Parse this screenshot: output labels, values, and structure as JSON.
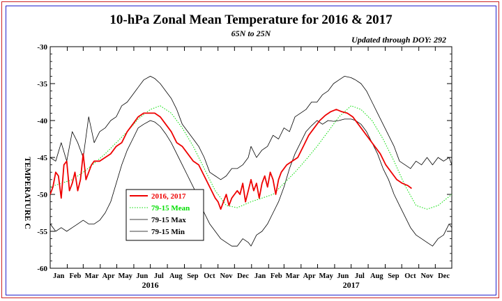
{
  "chart_data": {
    "type": "line",
    "title": "10-hPa Zonal Mean Temperature for 2016 & 2017",
    "subtitle": "65N to 25N",
    "update_note": "Updated through DOY: 292",
    "ylabel": "TEMPERATURE C",
    "ylim": [
      -60,
      -30
    ],
    "yticks": [
      -30,
      -35,
      -40,
      -45,
      -50,
      -55,
      -60
    ],
    "xlim": [
      0,
      730
    ],
    "month_labels": [
      "Jan",
      "Feb",
      "Mar",
      "Apr",
      "May",
      "Jun",
      "Jul",
      "Aug",
      "Sep",
      "Oct",
      "Nov",
      "Dec",
      "Jan",
      "Feb",
      "Mar",
      "Apr",
      "May",
      "Jun",
      "Jul",
      "Aug",
      "Sep",
      "Oct",
      "Nov",
      "Dec"
    ],
    "year_labels": [
      {
        "label": "2016",
        "day": 182
      },
      {
        "label": "2017",
        "day": 547
      }
    ],
    "grid": false,
    "legend_position": "lower-left",
    "series": [
      {
        "name": "2016, 2017",
        "color": "#ee0000",
        "style": "solid-thick",
        "x": [
          0,
          5,
          10,
          15,
          20,
          25,
          30,
          35,
          40,
          45,
          50,
          55,
          60,
          65,
          70,
          75,
          80,
          90,
          100,
          110,
          120,
          130,
          140,
          150,
          160,
          170,
          180,
          190,
          200,
          210,
          220,
          230,
          240,
          250,
          260,
          270,
          280,
          290,
          300,
          305,
          310,
          315,
          320,
          325,
          330,
          335,
          340,
          345,
          350,
          355,
          360,
          365,
          370,
          375,
          380,
          385,
          390,
          395,
          400,
          405,
          410,
          415,
          420,
          430,
          440,
          450,
          460,
          470,
          480,
          490,
          500,
          510,
          520,
          530,
          540,
          550,
          560,
          570,
          580,
          590,
          600,
          610,
          620,
          630,
          640,
          650,
          657
        ],
        "y": [
          -50,
          -49,
          -47,
          -47.5,
          -50.5,
          -46,
          -45.5,
          -49.5,
          -48.5,
          -47,
          -49.5,
          -48,
          -44.5,
          -48,
          -47,
          -46,
          -45.5,
          -45.5,
          -45,
          -44.5,
          -43.5,
          -43,
          -41.5,
          -40.5,
          -39.5,
          -39,
          -39,
          -39,
          -39.5,
          -40.5,
          -41.5,
          -43,
          -43.5,
          -44.5,
          -45.5,
          -46,
          -47.5,
          -49,
          -50.5,
          -51,
          -52,
          -51,
          -50,
          -51.5,
          -50.5,
          -50,
          -49.5,
          -50,
          -48.5,
          -51,
          -49.5,
          -48,
          -49.5,
          -48.5,
          -50.5,
          -48.5,
          -47.5,
          -49,
          -47,
          -48,
          -50,
          -48,
          -47,
          -46,
          -45.5,
          -45,
          -43.5,
          -42,
          -41,
          -40,
          -39.3,
          -38.8,
          -38.5,
          -38.8,
          -39,
          -39.5,
          -40.5,
          -41.5,
          -42.5,
          -43.5,
          -44.5,
          -46,
          -47,
          -48,
          -48.5,
          -48.8,
          -49.2
        ]
      },
      {
        "name": "79-15 Mean",
        "color": "#00dd00",
        "style": "dotted",
        "x": [
          0,
          20,
          40,
          60,
          80,
          100,
          120,
          140,
          160,
          182,
          200,
          220,
          240,
          260,
          280,
          300,
          320,
          340,
          365,
          385,
          405,
          425,
          445,
          465,
          485,
          505,
          525,
          547,
          565,
          585,
          605,
          625,
          645,
          665,
          685,
          705,
          730
        ],
        "y": [
          -49,
          -48.5,
          -48,
          -47,
          -45.8,
          -44.5,
          -43,
          -41.5,
          -39.8,
          -38.5,
          -38,
          -39,
          -41,
          -43.5,
          -46.5,
          -49.5,
          -51.5,
          -51.8,
          -51,
          -50.5,
          -50,
          -48.5,
          -47,
          -45.3,
          -43.5,
          -41.5,
          -39.5,
          -38,
          -38.5,
          -40,
          -42.5,
          -45.5,
          -48.8,
          -51.5,
          -52,
          -51.5,
          -50
        ]
      },
      {
        "name": "79-15 Max",
        "color": "#000000",
        "style": "solid-thin",
        "x": [
          0,
          10,
          20,
          30,
          40,
          50,
          60,
          70,
          80,
          90,
          100,
          110,
          120,
          130,
          140,
          150,
          160,
          170,
          182,
          190,
          200,
          210,
          220,
          230,
          240,
          250,
          260,
          270,
          280,
          290,
          300,
          310,
          320,
          330,
          340,
          350,
          360,
          365,
          375,
          385,
          395,
          405,
          415,
          425,
          435,
          445,
          455,
          465,
          475,
          485,
          495,
          505,
          515,
          525,
          535,
          547,
          555,
          565,
          575,
          585,
          595,
          605,
          615,
          625,
          635,
          645,
          655,
          665,
          675,
          685,
          695,
          705,
          715,
          725,
          730
        ],
        "y": [
          -45,
          -45.5,
          -43,
          -45.5,
          -41.5,
          -43,
          -45,
          -39.5,
          -43,
          -41.5,
          -41,
          -40,
          -39.5,
          -38,
          -37.5,
          -36.5,
          -35.5,
          -34.5,
          -34,
          -34.3,
          -35,
          -36,
          -37,
          -38.5,
          -40.5,
          -41.5,
          -42.5,
          -43.5,
          -45,
          -47,
          -47.5,
          -48,
          -47.5,
          -46.5,
          -46.5,
          -46,
          -45,
          -43.5,
          -45,
          -44,
          -43.5,
          -42,
          -42.5,
          -41,
          -41.5,
          -39.5,
          -39,
          -38.5,
          -37.5,
          -37.5,
          -36.5,
          -36,
          -35,
          -34.5,
          -34,
          -34.2,
          -34.5,
          -35,
          -36,
          -37.5,
          -39,
          -40.5,
          -42,
          -43.5,
          -45.5,
          -46,
          -46.5,
          -45.5,
          -46,
          -45,
          -46,
          -45,
          -45.5,
          -45,
          -46
        ]
      },
      {
        "name": "79-15 Min",
        "color": "#000000",
        "style": "solid-thin",
        "x": [
          0,
          10,
          20,
          30,
          40,
          50,
          60,
          70,
          80,
          90,
          100,
          110,
          120,
          130,
          140,
          150,
          160,
          170,
          182,
          190,
          200,
          210,
          220,
          230,
          240,
          250,
          260,
          270,
          280,
          290,
          300,
          310,
          320,
          330,
          340,
          350,
          360,
          365,
          375,
          385,
          395,
          405,
          415,
          425,
          435,
          445,
          455,
          465,
          475,
          485,
          495,
          505,
          515,
          525,
          535,
          547,
          555,
          565,
          575,
          585,
          595,
          605,
          615,
          625,
          635,
          645,
          655,
          665,
          675,
          685,
          695,
          705,
          715,
          725,
          730
        ],
        "y": [
          -54,
          -55,
          -54.5,
          -55,
          -54.5,
          -54,
          -53.5,
          -54,
          -54,
          -53.5,
          -52.5,
          -51,
          -48.5,
          -46,
          -44,
          -42.5,
          -41,
          -40.5,
          -40,
          -40.2,
          -40.8,
          -41.8,
          -43,
          -44.5,
          -46,
          -47.5,
          -49,
          -50.5,
          -52.5,
          -54,
          -55,
          -56,
          -56.5,
          -57,
          -57,
          -56,
          -56.5,
          -57,
          -55.5,
          -55,
          -54,
          -52.5,
          -51,
          -49,
          -46.5,
          -44.5,
          -43,
          -41.5,
          -40.7,
          -40,
          -40.5,
          -40,
          -40.1,
          -40,
          -39.8,
          -39.8,
          -40,
          -40.5,
          -41.5,
          -43,
          -44.5,
          -46.5,
          -48,
          -50,
          -51.5,
          -53,
          -54.5,
          -55.5,
          -56,
          -56.5,
          -57,
          -56,
          -55.5,
          -54,
          -54.5
        ]
      }
    ]
  }
}
